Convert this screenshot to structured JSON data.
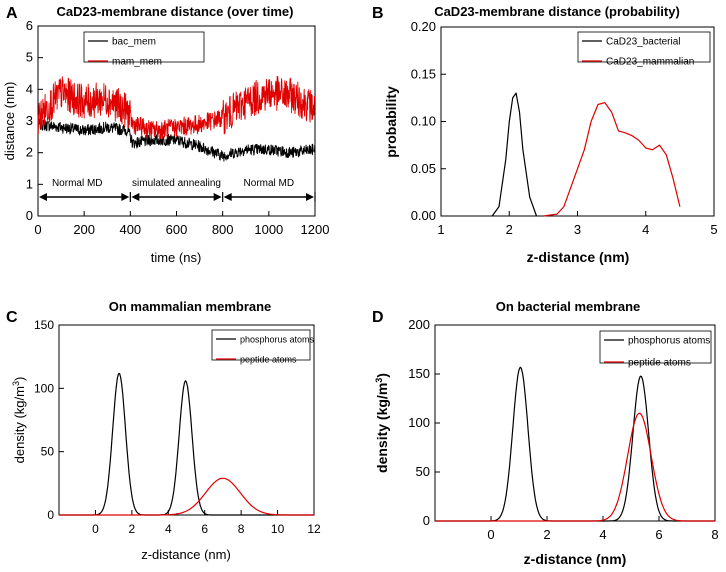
{
  "colors": {
    "black": "#000000",
    "red": "#e00000"
  },
  "chart_data": [
    {
      "panel": "A",
      "type": "line",
      "title": "CaD23-membrane distance (over time)",
      "xlabel": "time (ns)",
      "ylabel": "distance (nm)",
      "xlim": [
        0,
        1200
      ],
      "ylim": [
        0,
        6
      ],
      "xticks": [
        "0",
        "200",
        "400",
        "600",
        "800",
        "1000",
        "1200"
      ],
      "yticks": [
        "0",
        "1",
        "2",
        "3",
        "4",
        "5",
        "6"
      ],
      "legend": [
        "bac_mem",
        "mam_mem"
      ],
      "legend_position": "top-center",
      "series": [
        {
          "name": "bac_mem",
          "color": "#000000",
          "x": [
            0,
            100,
            200,
            300,
            390,
            410,
            500,
            600,
            700,
            800,
            900,
            1000,
            1100,
            1200
          ],
          "y": [
            2.9,
            2.8,
            2.7,
            2.8,
            2.7,
            2.3,
            2.4,
            2.4,
            2.2,
            1.9,
            2.1,
            2.1,
            2.0,
            2.1
          ]
        },
        {
          "name": "mam_mem",
          "color": "#e00000",
          "x": [
            0,
            100,
            200,
            300,
            390,
            410,
            500,
            600,
            700,
            800,
            900,
            1000,
            1100,
            1200
          ],
          "y": [
            3.1,
            3.9,
            3.6,
            3.7,
            3.3,
            2.9,
            2.7,
            2.8,
            2.9,
            3.1,
            3.6,
            3.9,
            3.8,
            3.4
          ]
        }
      ],
      "annotations": [
        {
          "text": "Normal MD",
          "x": 170
        },
        {
          "text": "simulated annealing",
          "x": 600
        },
        {
          "text": "Normal MD",
          "x": 1000
        }
      ],
      "arrow_segments": [
        [
          0,
          400
        ],
        [
          400,
          800
        ],
        [
          800,
          1200
        ]
      ],
      "arrow_y": 0.6
    },
    {
      "panel": "B",
      "type": "line",
      "title": "CaD23-membrane distance (probability)",
      "xlabel": "z-distance (nm)",
      "ylabel": "probability",
      "xlim": [
        1,
        5
      ],
      "ylim": [
        0,
        0.2
      ],
      "xticks": [
        "1",
        "2",
        "3",
        "4",
        "5"
      ],
      "yticks": [
        "0.00",
        "0.05",
        "0.10",
        "0.15",
        "0.20"
      ],
      "legend": [
        "CaD23_bacterial",
        "CaD23_mammalian"
      ],
      "legend_position": "top-right",
      "series": [
        {
          "name": "CaD23_bacterial",
          "color": "#000000",
          "x": [
            1.75,
            1.85,
            1.95,
            2.0,
            2.05,
            2.1,
            2.15,
            2.2,
            2.3,
            2.4
          ],
          "y": [
            0.0,
            0.01,
            0.06,
            0.1,
            0.125,
            0.13,
            0.11,
            0.07,
            0.02,
            0.0
          ]
        },
        {
          "name": "CaD23_mammalian",
          "color": "#e00000",
          "x": [
            2.5,
            2.7,
            2.8,
            2.9,
            3.0,
            3.1,
            3.2,
            3.3,
            3.4,
            3.5,
            3.6,
            3.7,
            3.8,
            3.9,
            4.0,
            4.1,
            4.2,
            4.3,
            4.4,
            4.5
          ],
          "y": [
            0.0,
            0.002,
            0.01,
            0.03,
            0.05,
            0.07,
            0.1,
            0.118,
            0.12,
            0.11,
            0.09,
            0.088,
            0.085,
            0.08,
            0.072,
            0.07,
            0.075,
            0.065,
            0.04,
            0.01
          ]
        }
      ]
    },
    {
      "panel": "C",
      "type": "line",
      "title": "On mammalian membrane",
      "xlabel": "z-distance (nm)",
      "ylabel_prefix": "density (kg/m",
      "ylabel_sup": "3",
      "ylabel_suffix": ")",
      "xlim": [
        -2,
        12
      ],
      "ylim": [
        0,
        150
      ],
      "xticks": [
        "0",
        "2",
        "4",
        "6",
        "8",
        "10",
        "12"
      ],
      "yticks": [
        "0",
        "50",
        "100",
        "150"
      ],
      "legend": [
        "phosphorus atoms",
        "peptide atoms"
      ],
      "legend_position": "top-right",
      "series": [
        {
          "name": "phosphorus atoms",
          "color": "#000000",
          "peaks": [
            {
              "center": 1.3,
              "height": 112,
              "sigma": 0.35
            },
            {
              "center": 4.95,
              "height": 106,
              "sigma": 0.35
            }
          ]
        },
        {
          "name": "peptide atoms",
          "color": "#e00000",
          "peaks": [
            {
              "center": 7.0,
              "height": 29,
              "sigma": 0.95
            }
          ]
        }
      ]
    },
    {
      "panel": "D",
      "type": "line",
      "title": "On bacterial membrane",
      "xlabel": "z-distance (nm)",
      "ylabel_prefix": "density (kg/m",
      "ylabel_sup": "3",
      "ylabel_suffix": ")",
      "xlim": [
        -2,
        8
      ],
      "ylim": [
        0,
        200
      ],
      "xticks": [
        "0",
        "2",
        "4",
        "6",
        "8"
      ],
      "yticks": [
        "0",
        "50",
        "100",
        "150",
        "200"
      ],
      "legend": [
        "phosphorus atoms",
        "peptide atoms"
      ],
      "legend_position": "top-right",
      "series": [
        {
          "name": "phosphorus atoms",
          "color": "#000000",
          "peaks": [
            {
              "center": 1.05,
              "height": 157,
              "sigma": 0.27
            },
            {
              "center": 5.35,
              "height": 148,
              "sigma": 0.28
            }
          ]
        },
        {
          "name": "peptide atoms",
          "color": "#e00000",
          "peaks": [
            {
              "center": 5.3,
              "height": 110,
              "sigma": 0.42
            }
          ]
        }
      ]
    }
  ]
}
